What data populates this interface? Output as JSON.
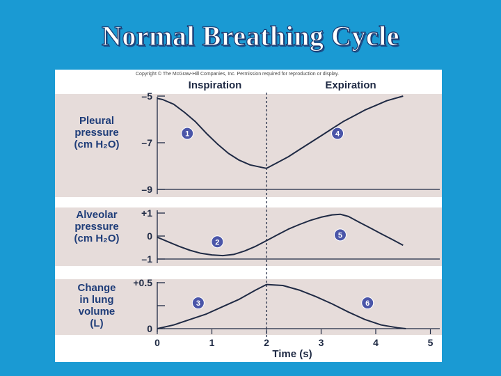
{
  "slide": {
    "title": "Normal Breathing Cycle"
  },
  "figure": {
    "copyright": "Copyright © The McGraw-Hill Companies, Inc. Permission required for reproduction or display.",
    "header_left": "Inspiration",
    "header_right": "Expiration",
    "xlabel": "Time (s)"
  },
  "colors": {
    "background": "#1a9ad3",
    "panel": "#e6dcda",
    "curve": "#1f2a44",
    "marker": "#4a55a8",
    "label": "#1f3d79"
  },
  "chart_data": [
    {
      "type": "line",
      "ylabel_lines": [
        "Pleural",
        "pressure",
        "(cm H₂O)"
      ],
      "yticks": [
        "–5",
        "–7",
        "–9"
      ],
      "ytick_values": [
        -5,
        -7,
        -9
      ],
      "ylim": [
        -9,
        -5
      ],
      "xlim": [
        0,
        5
      ],
      "x": [
        0,
        0.1,
        0.3,
        0.5,
        0.7,
        0.9,
        1.1,
        1.3,
        1.5,
        1.7,
        1.9,
        2.0,
        2.2,
        2.4,
        2.6,
        2.8,
        3.0,
        3.2,
        3.4,
        3.6,
        3.8,
        4.0,
        4.2,
        4.5
      ],
      "y": [
        -5.1,
        -5.15,
        -5.35,
        -5.7,
        -6.1,
        -6.6,
        -7.05,
        -7.45,
        -7.75,
        -7.95,
        -8.05,
        -8.1,
        -7.85,
        -7.6,
        -7.3,
        -7.0,
        -6.7,
        -6.4,
        -6.1,
        -5.85,
        -5.6,
        -5.4,
        -5.2,
        -5.0
      ],
      "markers": [
        {
          "label": "1",
          "x": 0.55,
          "y": -6.6
        },
        {
          "label": "4",
          "x": 3.3,
          "y": -6.6
        }
      ]
    },
    {
      "type": "line",
      "ylabel_lines": [
        "Alveolar",
        "pressure",
        "(cm H₂O)"
      ],
      "yticks": [
        "+1",
        "0",
        "–1"
      ],
      "ytick_values": [
        1,
        0,
        -1
      ],
      "ylim": [
        -1,
        1
      ],
      "xlim": [
        0,
        5
      ],
      "x": [
        0,
        0.2,
        0.4,
        0.6,
        0.8,
        1.0,
        1.2,
        1.4,
        1.6,
        1.8,
        2.0,
        2.2,
        2.4,
        2.6,
        2.8,
        3.0,
        3.2,
        3.35,
        3.5,
        3.7,
        3.9,
        4.1,
        4.3,
        4.5
      ],
      "y": [
        -0.05,
        -0.25,
        -0.45,
        -0.62,
        -0.75,
        -0.82,
        -0.85,
        -0.8,
        -0.65,
        -0.45,
        -0.2,
        0.05,
        0.3,
        0.5,
        0.68,
        0.82,
        0.92,
        0.95,
        0.85,
        0.6,
        0.35,
        0.1,
        -0.15,
        -0.4
      ],
      "markers": [
        {
          "label": "2",
          "x": 1.1,
          "y": -0.25
        },
        {
          "label": "5",
          "x": 3.35,
          "y": 0.05
        }
      ]
    },
    {
      "type": "line",
      "ylabel_lines": [
        "Change",
        "in lung",
        "volume",
        "(L)"
      ],
      "yticks": [
        "+0.5",
        "0"
      ],
      "ytick_values": [
        0.5,
        0
      ],
      "ylim": [
        0,
        0.5
      ],
      "xlim": [
        0,
        5
      ],
      "xticks": [
        "0",
        "1",
        "2",
        "3",
        "4",
        "5"
      ],
      "x": [
        0,
        0.3,
        0.6,
        0.9,
        1.2,
        1.5,
        1.8,
        2.0,
        2.3,
        2.6,
        2.9,
        3.2,
        3.5,
        3.8,
        4.1,
        4.4,
        4.55
      ],
      "y": [
        0,
        0.04,
        0.1,
        0.16,
        0.24,
        0.32,
        0.42,
        0.48,
        0.47,
        0.42,
        0.35,
        0.27,
        0.18,
        0.1,
        0.04,
        0.01,
        0
      ],
      "markers": [
        {
          "label": "3",
          "x": 0.75,
          "y": 0.28
        },
        {
          "label": "6",
          "x": 3.85,
          "y": 0.28
        }
      ]
    }
  ]
}
